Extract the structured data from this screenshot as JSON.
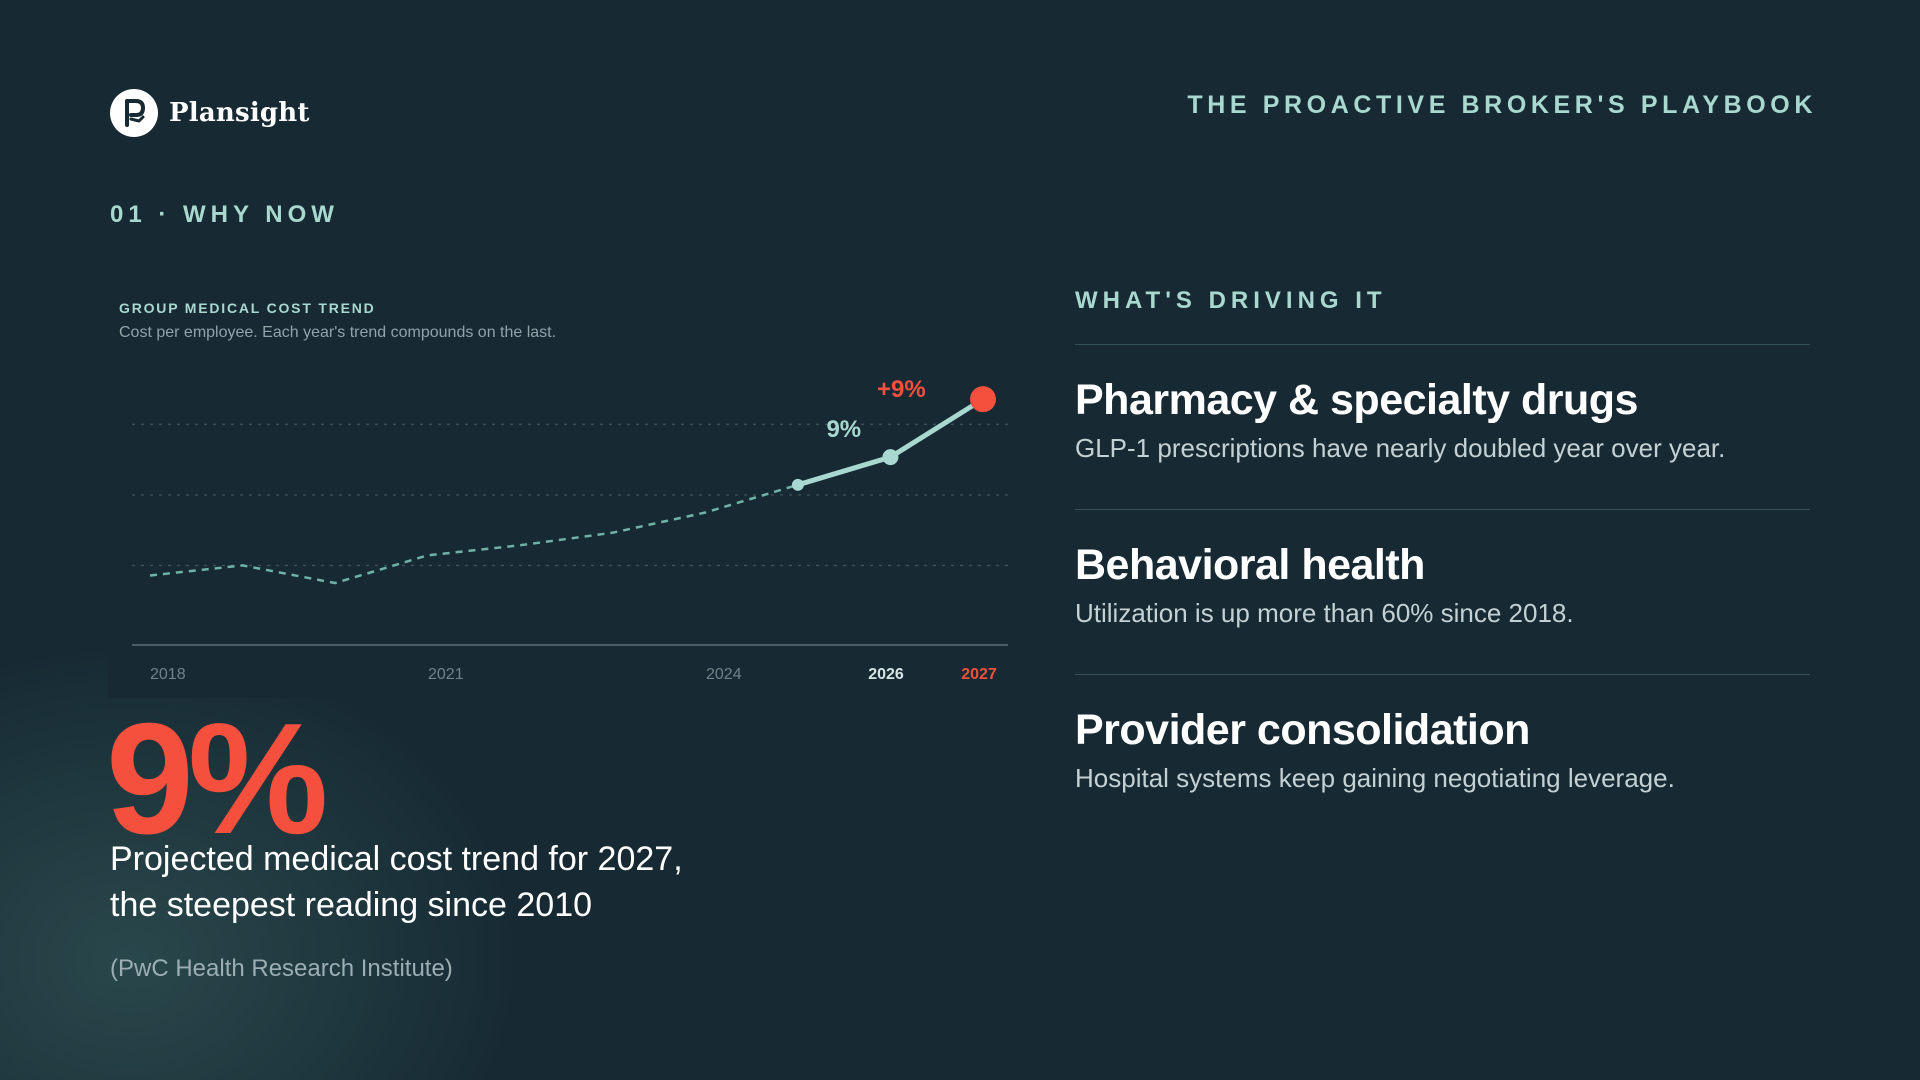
{
  "brand": {
    "name": "Plansight",
    "logo_icon": "plansight-logo-icon"
  },
  "header": {
    "playbook_title": "THE PROACTIVE BROKER'S PLAYBOOK"
  },
  "section": {
    "label": "01 · WHY NOW"
  },
  "chart_data": {
    "type": "line",
    "title": "GROUP MEDICAL COST TREND",
    "subtitle": "Cost per employee. Each year's trend compounds on the last.",
    "x": [
      2018,
      2019,
      2020,
      2021,
      2022,
      2023,
      2024,
      2025,
      2026,
      2027
    ],
    "tick_labels": [
      "2018",
      "2021",
      "2024",
      "2026",
      "2027"
    ],
    "series": [
      {
        "segment": "historical",
        "x": [
          2018,
          2019,
          2020,
          2021,
          2022,
          2023,
          2024,
          2025
        ],
        "values": [
          100,
          102,
          98.5,
          104,
          106,
          108.5,
          112.5,
          118
        ],
        "style": "dashed"
      },
      {
        "segment": "recent",
        "x": [
          2025,
          2026
        ],
        "values": [
          118,
          123.5
        ],
        "style": "solid"
      },
      {
        "segment": "projected",
        "x": [
          2026,
          2027
        ],
        "values": [
          123.5,
          135
        ],
        "style": "solid"
      }
    ],
    "annotations": [
      {
        "x": 2026,
        "text": "9%"
      },
      {
        "x": 2027,
        "text": "+9%"
      }
    ],
    "ylim": [
      86,
      140
    ],
    "grid": true,
    "colors": {
      "historical": "#6fb3a6",
      "recent": "#a8d8cf",
      "projected": "#a8d8cf",
      "highlight": "#f4503d",
      "axis": "#5b6f75",
      "gridline": "#3b5059"
    }
  },
  "stat": {
    "value": "9%",
    "caption_lines": [
      "Projected medical cost trend for 2027,",
      "the steepest reading since 2010"
    ],
    "source": "(PwC Health Research Institute)"
  },
  "drivers": {
    "label": "WHAT'S DRIVING IT",
    "items": [
      {
        "title": "Pharmacy & specialty drugs",
        "description": "GLP-1 prescriptions have nearly doubled year over year."
      },
      {
        "title": "Behavioral health",
        "description": "Utilization is up more than 60% since 2018."
      },
      {
        "title": "Provider consolidation",
        "description": "Hospital systems keep gaining negotiating leverage."
      }
    ]
  }
}
